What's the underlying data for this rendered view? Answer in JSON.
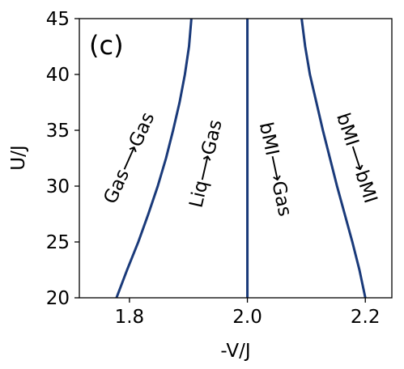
{
  "chart_data": {
    "type": "line",
    "panel_label": "(c)",
    "xlabel": "-V/J",
    "ylabel": "U/J",
    "xlim": [
      1.715,
      2.245
    ],
    "ylim": [
      20,
      45
    ],
    "xticks": [
      1.8,
      2.0,
      2.2
    ],
    "xtick_labels": [
      "1.8",
      "2.0",
      "2.2"
    ],
    "yticks": [
      20,
      25,
      30,
      35,
      40,
      45
    ],
    "ytick_labels": [
      "20",
      "25",
      "30",
      "35",
      "40",
      "45"
    ],
    "line_color": "#1a3a7a",
    "grid": false,
    "series": [
      {
        "x": [
          1.778,
          1.796,
          1.815,
          1.832,
          1.848,
          1.862,
          1.874,
          1.885,
          1.894,
          1.901,
          1.905
        ],
        "y": [
          20,
          22.5,
          25,
          27.5,
          30,
          32.5,
          35,
          37.5,
          40,
          42.5,
          45
        ]
      },
      {
        "x": [
          2.0,
          2.0
        ],
        "y": [
          20,
          45
        ]
      },
      {
        "x": [
          2.092,
          2.098,
          2.106,
          2.117,
          2.128,
          2.14,
          2.152,
          2.165,
          2.178,
          2.19,
          2.2
        ],
        "y": [
          45,
          42.5,
          40,
          37.5,
          35,
          32.5,
          30,
          27.5,
          25,
          22.5,
          20
        ]
      }
    ],
    "annotations": [
      {
        "text": "Gas⟶Gas",
        "x": 1.8,
        "y": 32.5,
        "rotation": -66
      },
      {
        "text": "Liq⟶Gas",
        "x": 1.93,
        "y": 32.0,
        "rotation": -77
      },
      {
        "text": "bMI⟶Gas",
        "x": 2.047,
        "y": 31.5,
        "rotation": 78
      },
      {
        "text": "bMI⟶bMI",
        "x": 2.185,
        "y": 32.5,
        "rotation": 72
      }
    ]
  }
}
